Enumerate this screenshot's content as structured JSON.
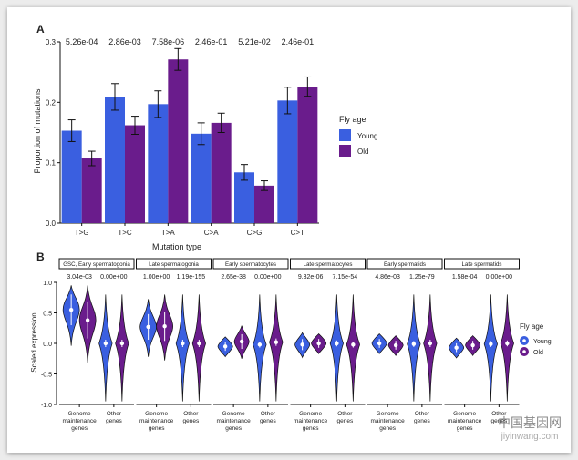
{
  "colors": {
    "young": "#3a5fe0",
    "old": "#6a1c8c",
    "stroke": "#111111"
  },
  "watermark": {
    "text_cn": "中国基因网",
    "text_en": "jiyinwang.com"
  },
  "chart_data": [
    {
      "panel_label": "A",
      "type": "bar",
      "xlabel": "Mutation type",
      "ylabel": "Proportion of mutations",
      "ylim": [
        0,
        0.3
      ],
      "yticks": [
        "0.0",
        "0.1",
        "0.2",
        "0.3"
      ],
      "categories": [
        "T>G",
        "T>C",
        "T>A",
        "C>A",
        "C>G",
        "C>T"
      ],
      "pvalues": [
        "5.26e-04",
        "2.86e-03",
        "7.58e-06",
        "2.46e-01",
        "5.21e-02",
        "2.46e-01"
      ],
      "legend_title": "Fly age",
      "legend_position": "right",
      "series": [
        {
          "name": "Young",
          "color": "#3a5fe0",
          "values": [
            0.153,
            0.209,
            0.197,
            0.148,
            0.084,
            0.203
          ],
          "err": [
            0.018,
            0.022,
            0.022,
            0.018,
            0.013,
            0.022
          ]
        },
        {
          "name": "Old",
          "color": "#6a1c8c",
          "values": [
            0.107,
            0.162,
            0.271,
            0.166,
            0.062,
            0.226
          ],
          "err": [
            0.012,
            0.015,
            0.018,
            0.016,
            0.008,
            0.016
          ]
        }
      ]
    },
    {
      "panel_label": "B",
      "type": "violin",
      "ylabel": "Scaled expression",
      "ylim": [
        -1.0,
        1.0
      ],
      "yticks": [
        "-1.0",
        "-0.5",
        "0.0",
        "0.5",
        "1.0"
      ],
      "legend_title": "Fly age",
      "legend_position": "right",
      "group_labels": [
        "Genome\nmaintenance\ngenes",
        "Other\ngenes"
      ],
      "series_names": [
        "Young",
        "Old"
      ],
      "facets": [
        {
          "title": "GSC, Early spermatogonia",
          "pvalues": [
            "3.04e-03",
            "0.00e+00"
          ],
          "medians": [
            [
              0.55,
              0.38
            ],
            [
              0.0,
              0.0
            ]
          ],
          "spread": [
            [
              0.42,
              0.5
            ],
            [
              0.1,
              0.1
            ]
          ]
        },
        {
          "title": "Late spermatogonia",
          "pvalues": [
            "1.00e+00",
            "1.19e-155"
          ],
          "medians": [
            [
              0.27,
              0.28
            ],
            [
              0.0,
              0.0
            ]
          ],
          "spread": [
            [
              0.35,
              0.4
            ],
            [
              0.1,
              0.1
            ]
          ]
        },
        {
          "title": "Early spermatocytes",
          "pvalues": [
            "2.65e-38",
            "0.00e+00"
          ],
          "medians": [
            [
              -0.05,
              0.03
            ],
            [
              -0.02,
              0.02
            ]
          ],
          "spread": [
            [
              0.12,
              0.2
            ],
            [
              0.08,
              0.1
            ]
          ]
        },
        {
          "title": "Late spermatocytes",
          "pvalues": [
            "9.32e-06",
            "7.15e-54"
          ],
          "medians": [
            [
              -0.02,
              0.0
            ],
            [
              0.0,
              -0.02
            ]
          ],
          "spread": [
            [
              0.15,
              0.12
            ],
            [
              0.08,
              0.08
            ]
          ]
        },
        {
          "title": "Early spermatids",
          "pvalues": [
            "4.86e-03",
            "1.25e-79"
          ],
          "medians": [
            [
              0.0,
              -0.03
            ],
            [
              -0.01,
              0.0
            ]
          ],
          "spread": [
            [
              0.12,
              0.12
            ],
            [
              0.08,
              0.1
            ]
          ]
        },
        {
          "title": "Late spermatids",
          "pvalues": [
            "1.58e-04",
            "0.00e+00"
          ],
          "medians": [
            [
              -0.07,
              -0.03
            ],
            [
              -0.01,
              0.0
            ]
          ],
          "spread": [
            [
              0.12,
              0.12
            ],
            [
              0.08,
              0.08
            ]
          ]
        }
      ]
    }
  ]
}
